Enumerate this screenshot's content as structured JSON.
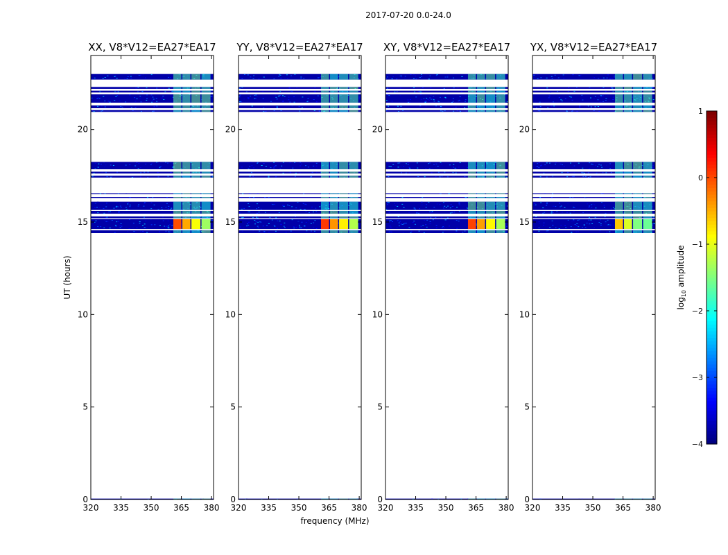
{
  "suptitle": "2017-07-20 0.0-24.0",
  "chart_data": {
    "type": "heatmap",
    "xlabel": "frequency (MHz)",
    "ylabel": "UT (hours)",
    "xlim": [
      320,
      381
    ],
    "ylim": [
      0,
      24
    ],
    "x_ticks": [
      320,
      335,
      350,
      365,
      380
    ],
    "y_ticks": [
      0,
      5,
      10,
      15,
      20
    ],
    "colorbar": {
      "label": "log10 amplitude",
      "label_main": "log",
      "label_sub": "10",
      "label_rest": " amplitude",
      "range": [
        -4,
        1
      ],
      "ticks": [
        -4,
        -3,
        -2,
        -1,
        0,
        1
      ],
      "tick_labels": [
        "−4",
        "−3",
        "−2",
        "−1",
        "0",
        "1"
      ],
      "colormap": "jet"
    },
    "panels": [
      {
        "title": "XX, V8*V12=EA27*EA17",
        "peak": 0.0
      },
      {
        "title": "YY, V8*V12=EA27*EA17",
        "peak": 0.1
      },
      {
        "title": "XY, V8*V12=EA27*EA17",
        "peak": 0.05
      },
      {
        "title": "YX, V8*V12=EA27*EA17",
        "peak": -0.6
      }
    ],
    "data_bands_ut": [
      [
        0.0,
        0.05
      ],
      [
        14.4,
        14.55
      ],
      [
        14.62,
        15.15
      ],
      [
        15.2,
        15.3
      ],
      [
        15.45,
        15.6
      ],
      [
        15.65,
        16.1
      ],
      [
        16.3,
        16.35
      ],
      [
        16.5,
        16.55
      ],
      [
        17.4,
        17.5
      ],
      [
        17.62,
        17.72
      ],
      [
        17.85,
        18.25
      ],
      [
        20.95,
        21.05
      ],
      [
        21.15,
        21.3
      ],
      [
        21.45,
        21.9
      ],
      [
        22.0,
        22.1
      ],
      [
        22.2,
        22.3
      ],
      [
        22.7,
        23.0
      ]
    ],
    "rfi_channels_mhz": [
      [
        361,
        365.5
      ],
      [
        365.5,
        370
      ],
      [
        370,
        375
      ],
      [
        375,
        380
      ]
    ],
    "background_log_amp": -3.8,
    "rfi_log_amp": [
      -2.0,
      -1.0
    ]
  }
}
